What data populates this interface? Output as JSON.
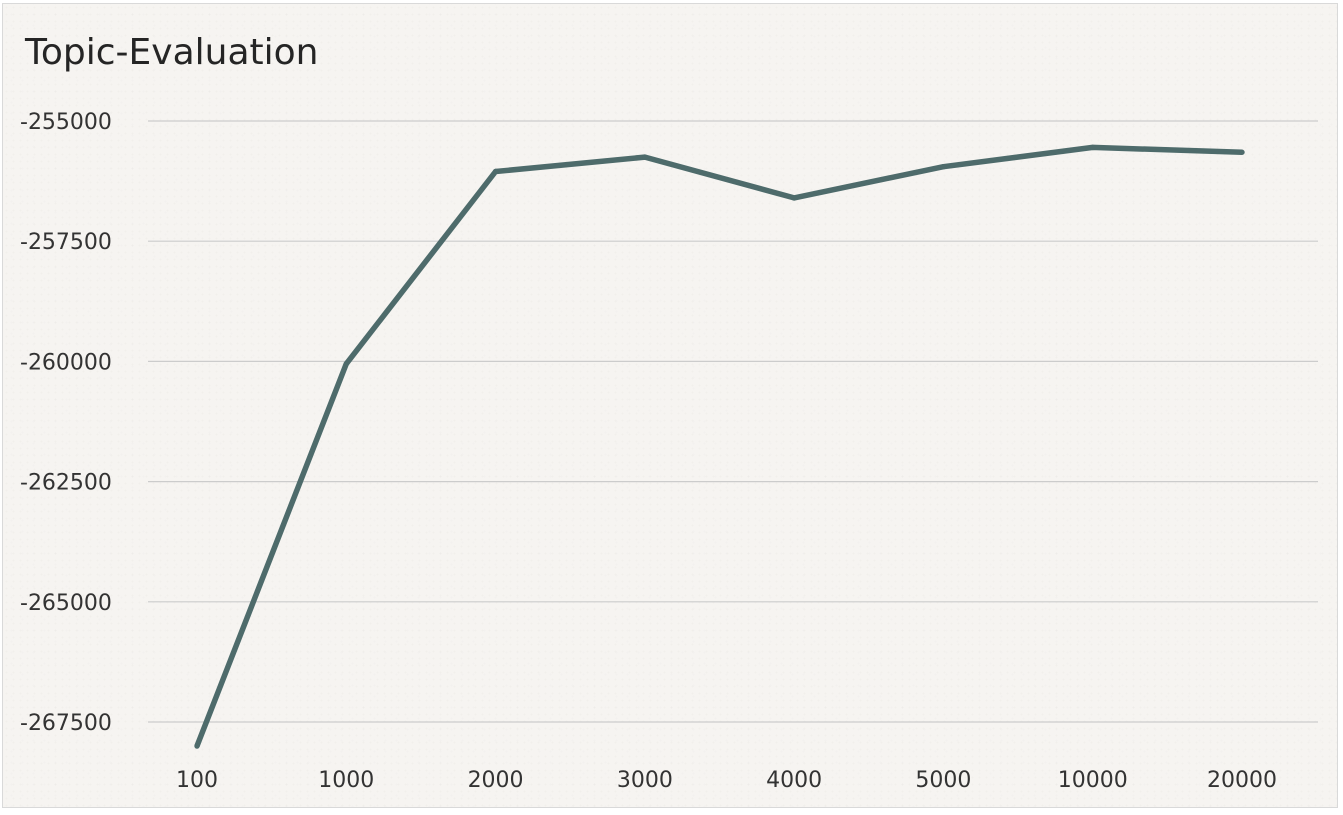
{
  "chart_data": {
    "type": "line",
    "title": "Topic-Evaluation",
    "xlabel": "",
    "ylabel": "",
    "categories": [
      "100",
      "1000",
      "2000",
      "3000",
      "4000",
      "5000",
      "10000",
      "20000"
    ],
    "series": [
      {
        "values": [
          -268000,
          -260050,
          -256050,
          -255750,
          -256600,
          -255950,
          -255550,
          -255650
        ]
      }
    ],
    "ylim": [
      -268200,
      -254500
    ],
    "yticks": [
      -255000,
      -257500,
      -260000,
      -262500,
      -265000,
      -267500
    ],
    "ytick_labels": [
      "-255000",
      "-257500",
      "-260000",
      "-262500",
      "-265000",
      "-267500"
    ],
    "grid": true,
    "legend": "none",
    "line_color": "#4e6b6b",
    "grid_color": "#cccccc"
  }
}
